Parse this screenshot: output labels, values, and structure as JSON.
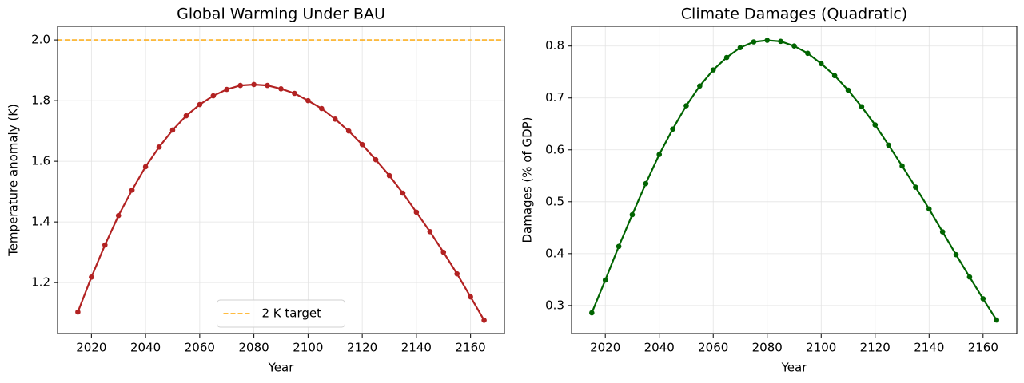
{
  "chart_data": [
    {
      "type": "line",
      "title": "Global Warming Under BAU",
      "xlabel": "Year",
      "ylabel": "Temperature anomaly (K)",
      "x": [
        2015,
        2020,
        2025,
        2030,
        2035,
        2040,
        2045,
        2050,
        2055,
        2060,
        2065,
        2070,
        2075,
        2080,
        2085,
        2090,
        2095,
        2100,
        2105,
        2110,
        2115,
        2120,
        2125,
        2130,
        2135,
        2140,
        2145,
        2150,
        2155,
        2160,
        2165
      ],
      "values": [
        1.103,
        1.218,
        1.324,
        1.421,
        1.505,
        1.582,
        1.647,
        1.703,
        1.75,
        1.787,
        1.816,
        1.837,
        1.85,
        1.853,
        1.85,
        1.839,
        1.824,
        1.8,
        1.774,
        1.739,
        1.7,
        1.655,
        1.605,
        1.553,
        1.495,
        1.432,
        1.368,
        1.3,
        1.229,
        1.153,
        1.076
      ],
      "color": "#b22222",
      "xlim": [
        2007.5,
        2172.5
      ],
      "xticks": [
        2020,
        2040,
        2060,
        2080,
        2100,
        2120,
        2140,
        2160
      ],
      "ylim": [
        1.032,
        2.045
      ],
      "yticks": [
        1.2,
        1.4,
        1.6,
        1.8,
        {
          "value": 2,
          "label": "2.0"
        }
      ],
      "grid": true,
      "reference_lines": [
        {
          "value": 2,
          "label": "2 K target",
          "color": "#ffa500"
        }
      ],
      "legend": "lower center"
    },
    {
      "type": "line",
      "title": "Climate Damages (Quadratic)",
      "xlabel": "Year",
      "ylabel": "Damages (% of GDP)",
      "x": [
        2015,
        2020,
        2025,
        2030,
        2035,
        2040,
        2045,
        2050,
        2055,
        2060,
        2065,
        2070,
        2075,
        2080,
        2085,
        2090,
        2095,
        2100,
        2105,
        2110,
        2115,
        2120,
        2125,
        2130,
        2135,
        2140,
        2145,
        2150,
        2155,
        2160,
        2165
      ],
      "values": [
        0.286,
        0.349,
        0.414,
        0.475,
        0.535,
        0.591,
        0.64,
        0.685,
        0.723,
        0.754,
        0.778,
        0.797,
        0.808,
        0.811,
        0.809,
        0.8,
        0.786,
        0.766,
        0.743,
        0.715,
        0.683,
        0.648,
        0.609,
        0.569,
        0.528,
        0.486,
        0.442,
        0.398,
        0.355,
        0.313,
        0.272
      ],
      "color": "#006400",
      "xlim": [
        2007.5,
        2172.5
      ],
      "xticks": [
        2020,
        2040,
        2060,
        2080,
        2100,
        2120,
        2140,
        2160
      ],
      "ylim": [
        0.246,
        0.838
      ],
      "yticks": [
        0.3,
        0.4,
        0.5,
        0.6,
        0.7,
        0.8
      ],
      "grid": true
    }
  ]
}
